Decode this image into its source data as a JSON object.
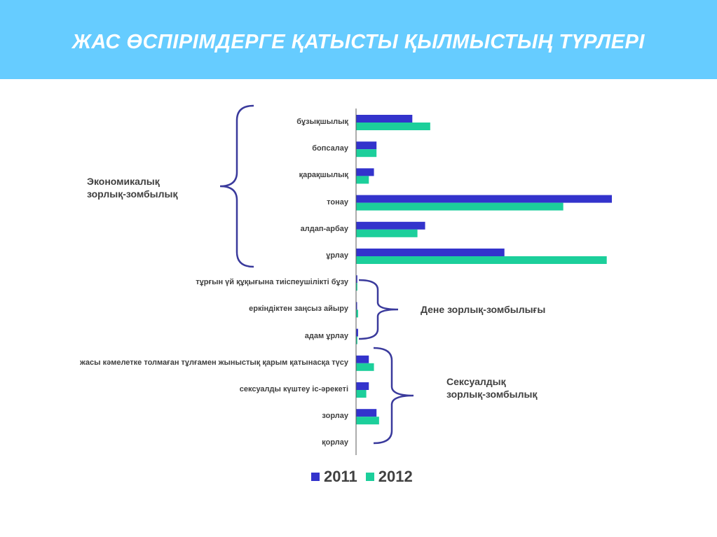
{
  "header": {
    "title": "ЖАС ӨСПІРІМДЕРГЕ  ҚАТЫСТЫ ҚЫЛМЫСТЫҢ ТҮРЛЕРІ",
    "bg_color": "#66ccff"
  },
  "groups": [
    {
      "label": "Экономикалық\nзорлық-зомбылық"
    },
    {
      "label": "Дене  зорлық-зомбылығы"
    },
    {
      "label": "Сексуалдық\nзорлық-зомбылық"
    }
  ],
  "chart_data": {
    "type": "bar",
    "orientation": "horizontal",
    "categories": [
      "бұзықшылық",
      "бопсалау",
      "қарақшылық",
      "тонау",
      "алдап-арбау",
      "ұрлау",
      "тұрғын үй құқығына тиіспеушілікті  бұзу",
      "еркіндіктен заңсыз айыру",
      "адам ұрлау",
      "жасы кәмелетке толмаған тұлғамен жыныстық қарым қатынасқа түсу",
      "сексуалды күштеу іс-әрекеті",
      "зорлау",
      "қорлау"
    ],
    "series": [
      {
        "name": "2011",
        "color": "#3333cc",
        "values": [
          22,
          8,
          7,
          100,
          27,
          58,
          0.5,
          0.4,
          0.8,
          5,
          5,
          8,
          0
        ]
      },
      {
        "name": "2012",
        "color": "#1ccf9b",
        "values": [
          29,
          8,
          5,
          81,
          24,
          98,
          0.5,
          0.8,
          0.5,
          7,
          4,
          9,
          0
        ]
      }
    ],
    "xlim": [
      0,
      100
    ],
    "grid": false,
    "legend_position": "bottom"
  }
}
